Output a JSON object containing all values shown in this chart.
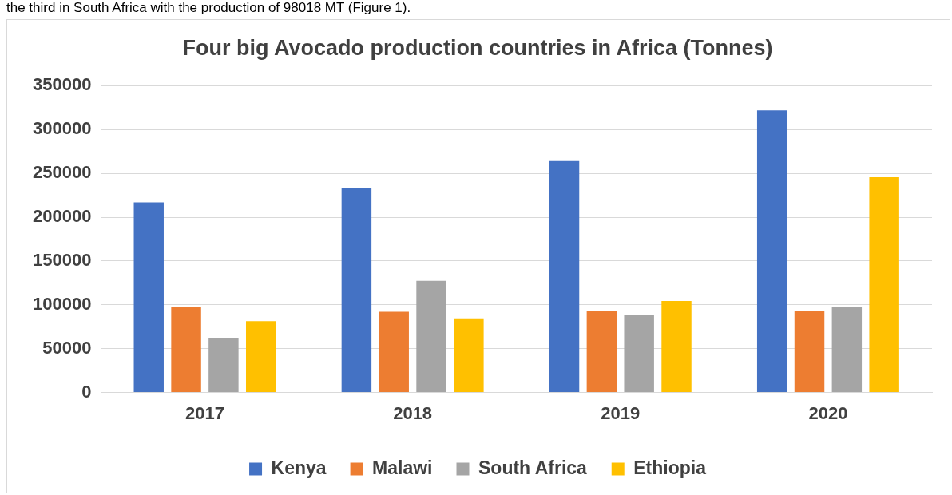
{
  "chart_data": {
    "type": "bar",
    "title": "Four big Avocado production countries in Africa (Tonnes)",
    "annotations": [
      "the third in South Africa with the production of 98018 MT (Figure 1)."
    ],
    "categories": [
      "2017",
      "2018",
      "2019",
      "2020"
    ],
    "series": [
      {
        "name": "Kenya",
        "color": "#4472c4",
        "values": [
          217000,
          233000,
          264000,
          322000
        ]
      },
      {
        "name": "Malawi",
        "color": "#ed7d31",
        "values": [
          97000,
          92000,
          93000,
          93000
        ]
      },
      {
        "name": "South Africa",
        "color": "#a5a5a5",
        "values": [
          62500,
          127500,
          89000,
          98018
        ]
      },
      {
        "name": "Ethiopia",
        "color": "#ffc000",
        "values": [
          81500,
          84500,
          104500,
          245500
        ]
      }
    ],
    "ylim": [
      0,
      350000
    ],
    "yticks": [
      0,
      50000,
      100000,
      150000,
      200000,
      250000,
      300000,
      350000
    ],
    "grid": "y",
    "legend": "bottom"
  }
}
